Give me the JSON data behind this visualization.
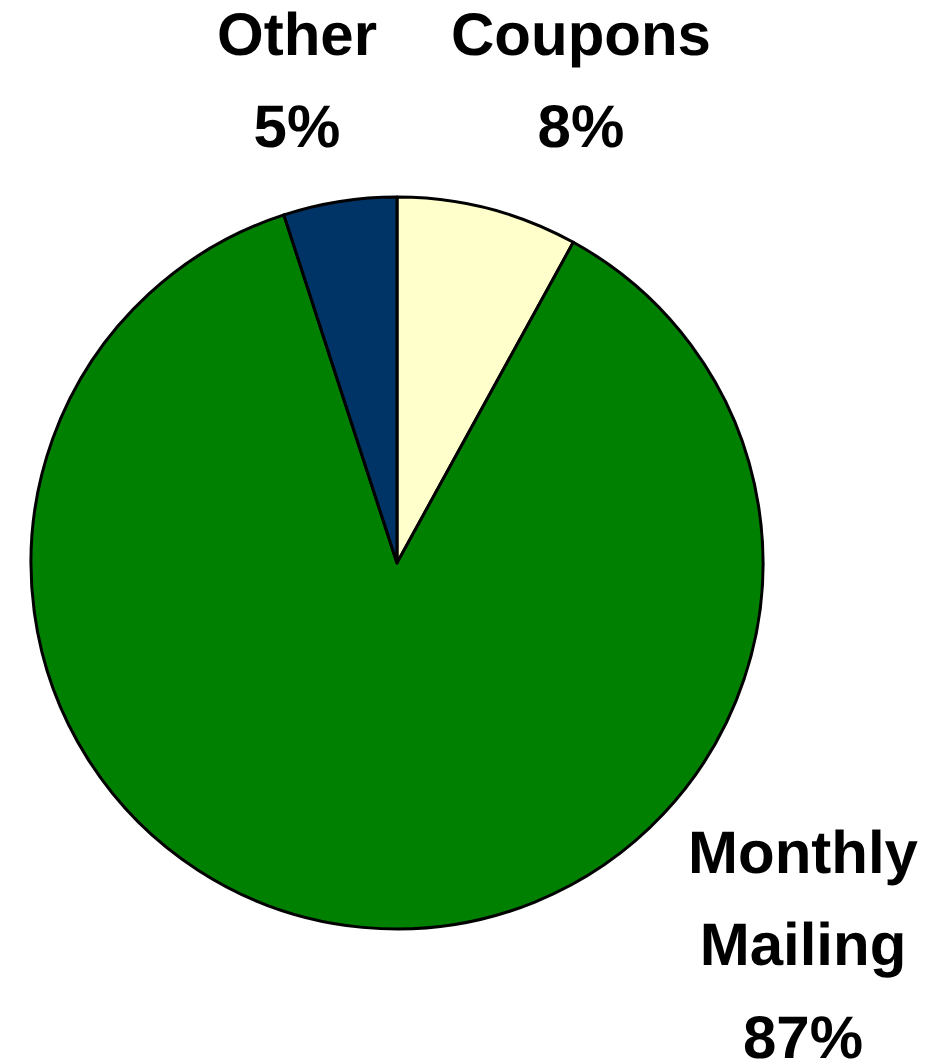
{
  "chart_data": {
    "type": "pie",
    "categories": [
      "Coupons",
      "Monthly Mailing",
      "Other"
    ],
    "values": [
      8,
      87,
      5
    ],
    "colors": [
      "#ffffcc",
      "#008000",
      "#003366"
    ],
    "value_labels": [
      "8%",
      "87%",
      "5%"
    ]
  }
}
